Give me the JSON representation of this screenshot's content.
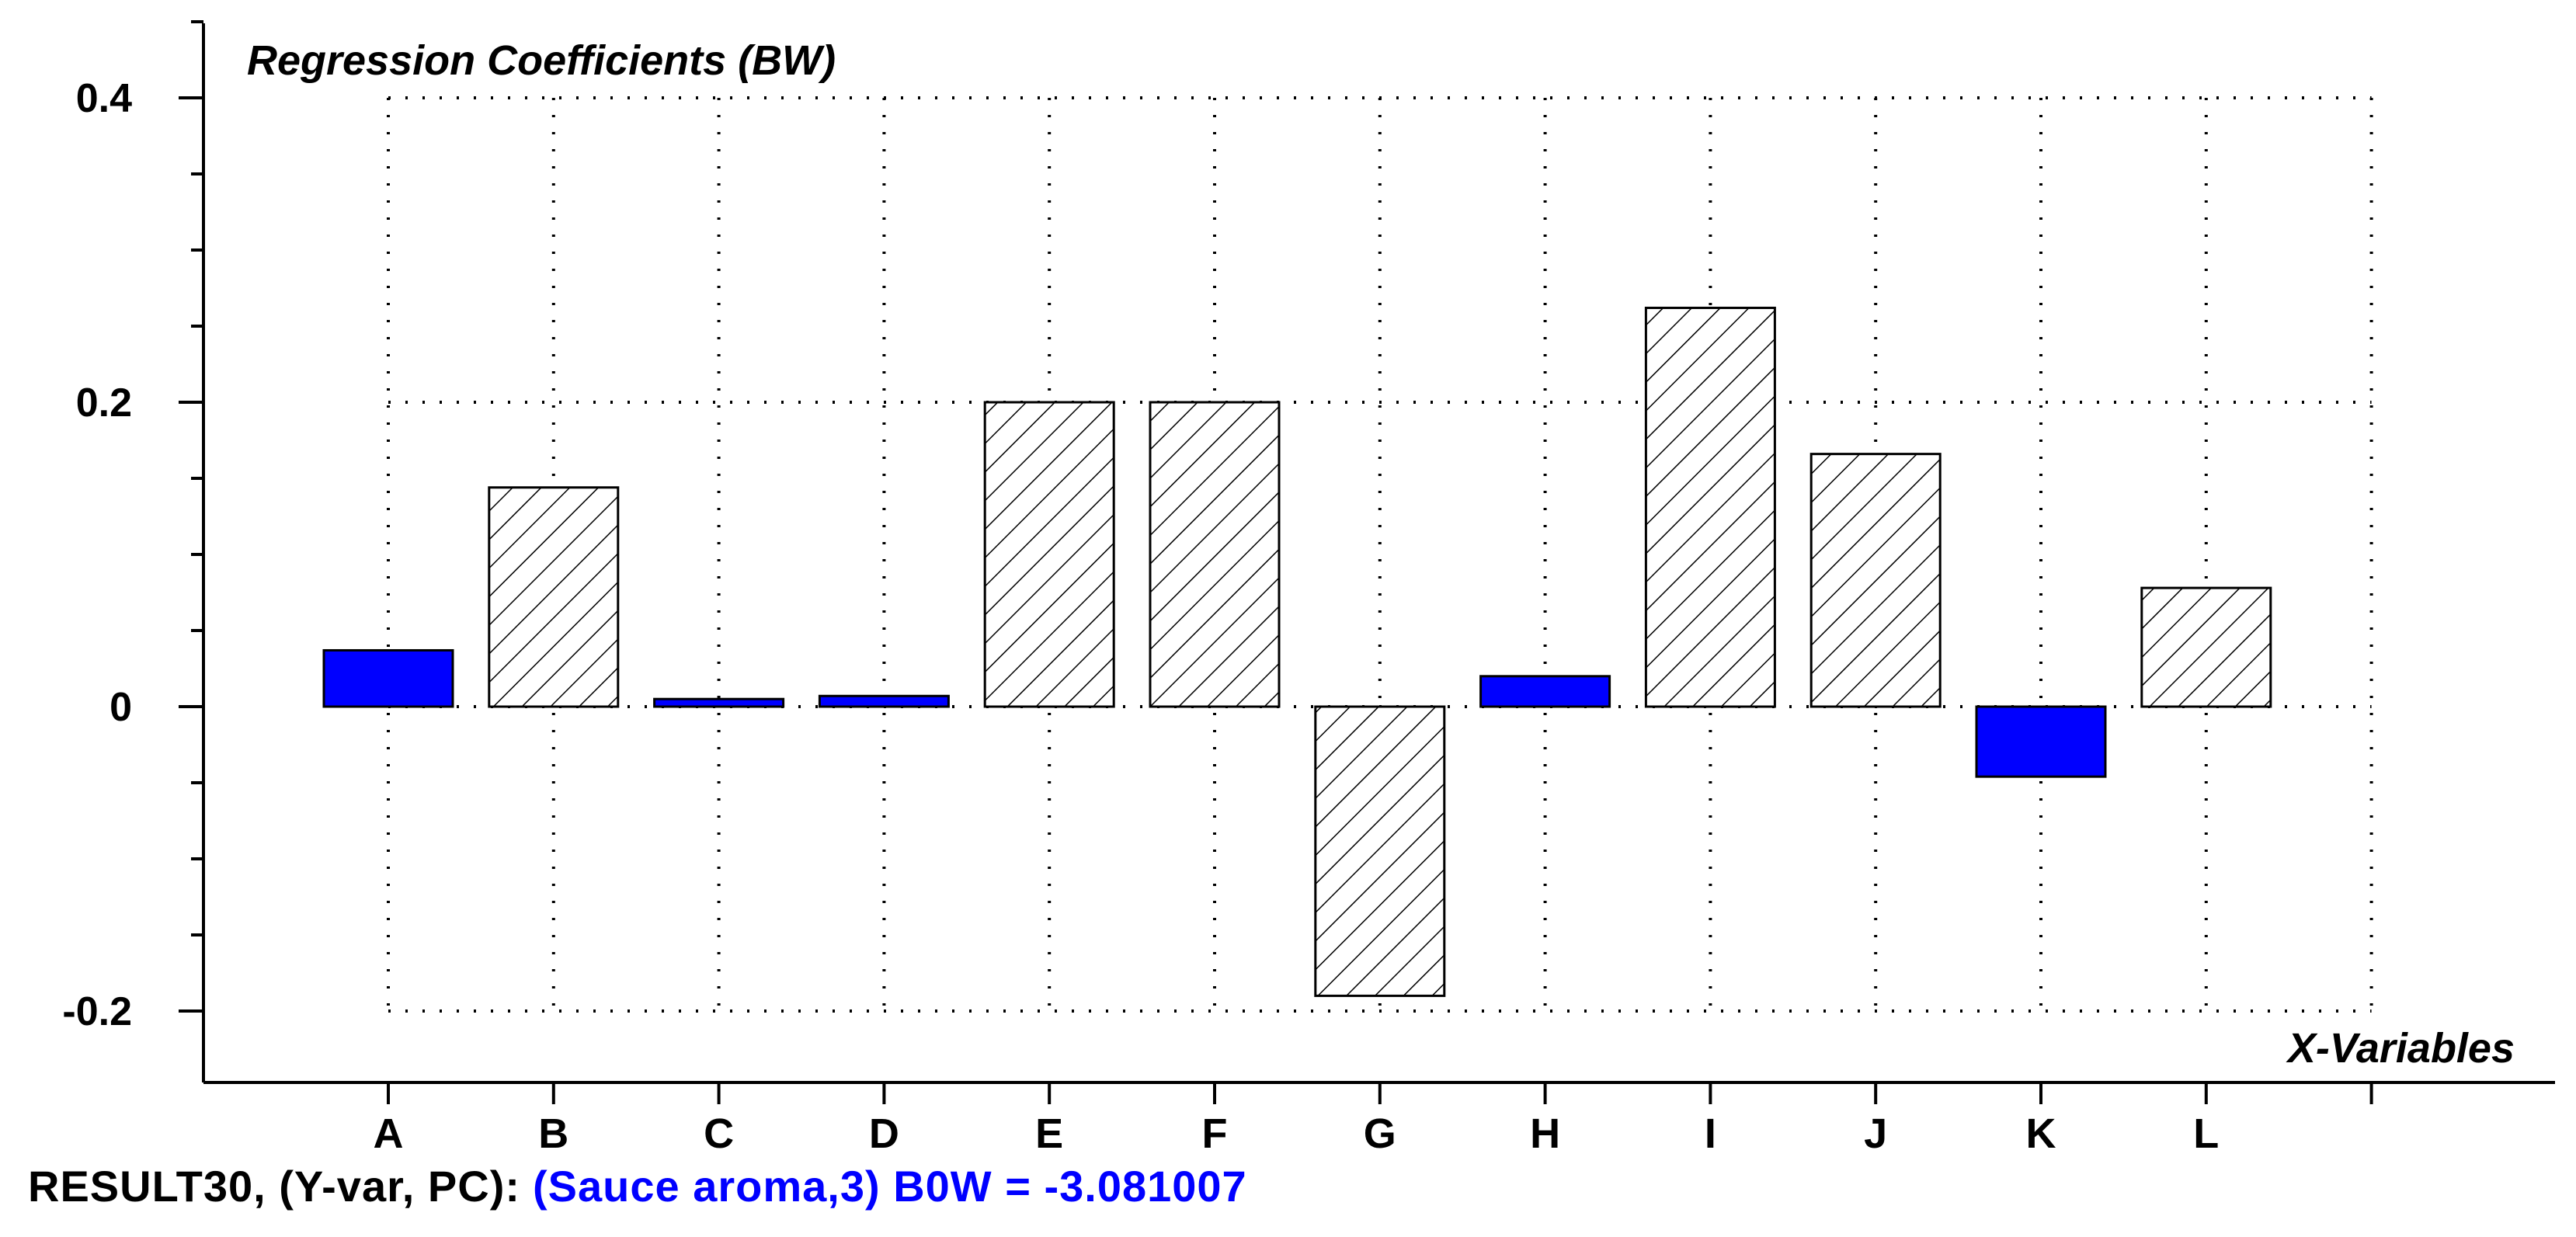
{
  "chart_data": {
    "type": "bar",
    "title": "Regression Coefficients (BW)",
    "xlabel": "X-Variables",
    "ylabel": "",
    "categories": [
      "A",
      "B",
      "C",
      "D",
      "E",
      "F",
      "G",
      "H",
      "I",
      "J",
      "K",
      "L"
    ],
    "values": [
      0.037,
      0.144,
      0.005,
      0.007,
      0.2,
      0.2,
      -0.19,
      0.02,
      0.262,
      0.166,
      -0.046,
      0.078
    ],
    "bar_styles": [
      "solid",
      "hatched",
      "solid",
      "solid",
      "hatched",
      "hatched",
      "hatched",
      "solid",
      "hatched",
      "hatched",
      "solid",
      "hatched"
    ],
    "ylim": [
      -0.22,
      0.45
    ],
    "yticks": [
      {
        "value": -0.2,
        "label": "-0.2"
      },
      {
        "value": 0,
        "label": "0"
      },
      {
        "value": 0.2,
        "label": "0.2"
      },
      {
        "value": 0.4,
        "label": "0.4"
      }
    ],
    "y_minor_step": 0.05,
    "grid": true,
    "colors": {
      "solid_bar": "#0000ff",
      "hatched_bar_fill": "#ffffff",
      "hatch_line": "#000000",
      "axis": "#000000",
      "grid": "#000000"
    }
  },
  "footer": {
    "result_label": "RESULT30, (Y-var, PC):",
    "detail": "(Sauce aroma,3) B0W = -3.081007",
    "detail_color": "#0000ff"
  }
}
